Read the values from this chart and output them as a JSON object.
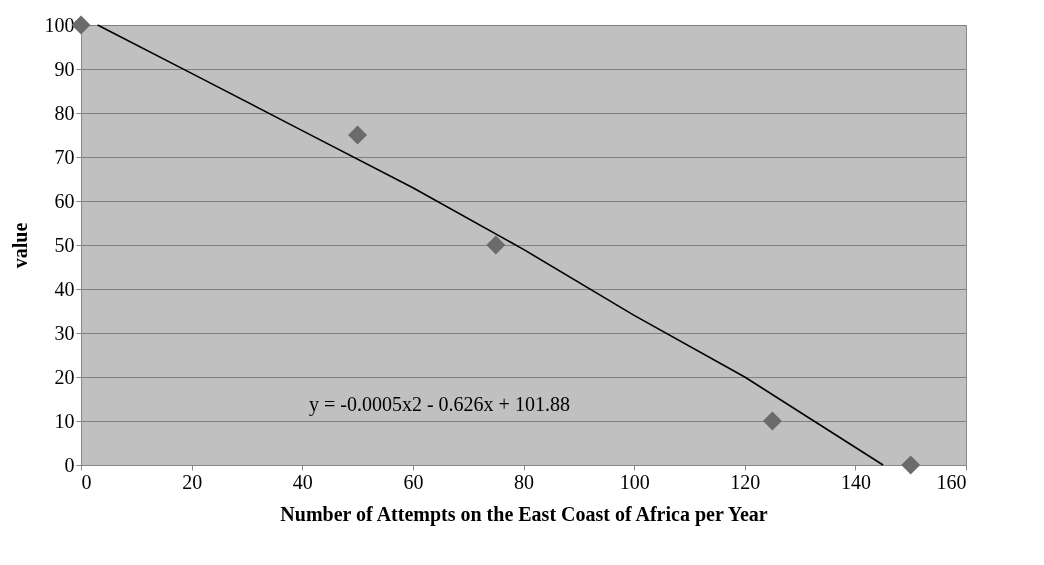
{
  "chart_data": {
    "type": "scatter",
    "xlabel": "Number of Attempts on the East Coast of Africa per Year",
    "ylabel": "value",
    "series": [
      {
        "color": "#6b6b6b",
        "marker": "diamond",
        "x": [
          0,
          50,
          75,
          125,
          150
        ],
        "values": [
          100,
          75,
          50,
          10,
          0
        ]
      },
      {
        "type": "line",
        "color": "#000000",
        "marker": "none",
        "line_style": "solid",
        "x": [
          3,
          20,
          40,
          60,
          80,
          100,
          120,
          145
        ],
        "values": [
          100,
          89,
          76,
          63,
          49,
          34,
          20,
          0
        ]
      }
    ],
    "annotations": [
      "y = -0.0005x2 - 0.626x + 101.88"
    ],
    "xlim": [
      0,
      160
    ],
    "xticks": [
      0,
      20,
      40,
      60,
      80,
      100,
      120,
      140,
      160
    ],
    "ylim": [
      0,
      100
    ],
    "yticks": [
      0,
      10,
      20,
      30,
      40,
      50,
      60,
      70,
      80,
      90,
      100
    ],
    "grid": "y"
  }
}
